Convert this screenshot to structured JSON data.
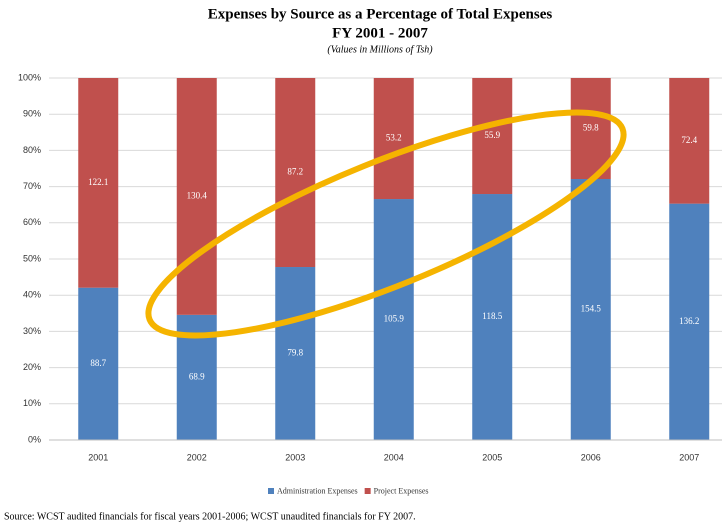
{
  "chart_data": {
    "type": "bar",
    "stacking": "percent",
    "title": "Expenses by Source as a Percentage of Total Expenses",
    "subtitle": "FY 2001 - 2007",
    "note": "(Values in Millions of Tsh)",
    "source": "Source: WCST audited financials for fiscal years 2001-2006; WCST unaudited financials for FY 2007.",
    "categories": [
      "2001",
      "2002",
      "2003",
      "2004",
      "2005",
      "2006",
      "2007"
    ],
    "series": [
      {
        "name": "Administration Expenses",
        "color": "#4f81bd",
        "values": [
          88.7,
          68.9,
          79.8,
          105.9,
          118.5,
          154.5,
          136.2
        ]
      },
      {
        "name": "Project Expenses",
        "color": "#c0504d",
        "values": [
          122.1,
          130.4,
          87.2,
          53.2,
          55.9,
          59.8,
          72.4
        ]
      }
    ],
    "ylim": [
      0,
      100
    ],
    "yticks": [
      {
        "value": 0,
        "label": "0%"
      },
      {
        "value": 10,
        "label": "10%"
      },
      {
        "value": 20,
        "label": "20%"
      },
      {
        "value": 30,
        "label": "30%"
      },
      {
        "value": 40,
        "label": "40%"
      },
      {
        "value": 50,
        "label": "50%"
      },
      {
        "value": 60,
        "label": "60%"
      },
      {
        "value": 70,
        "label": "70%"
      },
      {
        "value": 80,
        "label": "80%"
      },
      {
        "value": 90,
        "label": "90%"
      },
      {
        "value": 100,
        "label": "100%"
      }
    ],
    "grid": true,
    "legend": "bottom"
  }
}
